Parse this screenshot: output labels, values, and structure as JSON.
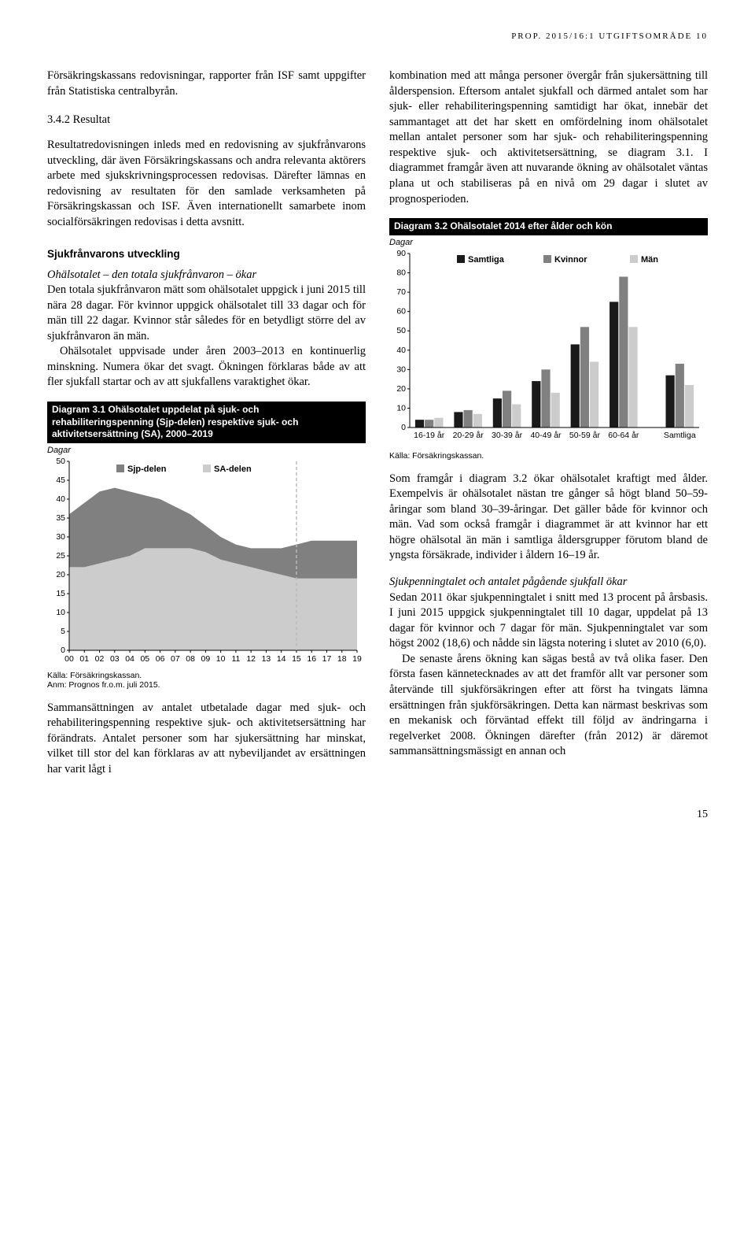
{
  "header": "PROP. 2015/16:1 UTGIFTSOMRÅDE 10",
  "page_number": "15",
  "left": {
    "p1": "Försäkringskassans redovisningar, rapporter från ISF samt uppgifter från Statistiska centralbyrån.",
    "sec_num": "3.4.2   Resultat",
    "p2": "Resultatredovisningen inleds med en redovisning av sjukfrånvarons utveckling, där även Försäkringskassans och andra relevanta aktörers arbete med sjukskrivningsprocessen redovisas. Därefter lämnas en redovisning av resultaten för den samlade verksamheten på Försäkringskassan och ISF. Även internationellt samarbete inom socialförsäkringen redovisas i detta avsnitt.",
    "sub1": "Sjukfrånvarons utveckling",
    "p3_head": "Ohälsotalet – den totala sjukfrånvaron – ökar",
    "p3": "Den totala sjukfrånvaron mätt som ohälsotalet uppgick i juni 2015 till nära 28 dagar. För kvinnor uppgick ohälsotalet till 33 dagar och för män till 22 dagar. Kvinnor står således för en betydligt större del av sjukfrånvaron än män.",
    "p4": "Ohälsotalet uppvisade under åren 2003–2013 en kontinuerlig minskning. Numera ökar det svagt. Ökningen förklaras både av att fler sjukfall startar och av att sjukfallens varaktighet ökar.",
    "p5": "Sammansättningen av antalet utbetalade dagar med sjuk- och rehabiliteringspenning respektive sjuk- och aktivitetsersättning har förändrats. Antalet personer som har sjukersättning har minskat, vilket till stor del kan förklaras av att nybeviljandet av ersättningen har varit lågt i"
  },
  "right": {
    "p1": "kombination med att många personer övergår från sjukersättning till ålderspension. Eftersom antalet sjukfall och därmed antalet som har sjuk- eller rehabiliteringspenning samtidigt har ökat, innebär det sammantaget att det har skett en omfördelning inom ohälsotalet mellan antalet personer som har sjuk- och rehabiliteringspenning respektive sjuk- och aktivitetsersättning, se diagram 3.1. I diagrammet framgår även att nuvarande ökning av ohälsotalet väntas plana ut och stabiliseras på en nivå om 29 dagar i slutet av prognosperioden.",
    "p2": "Som framgår i diagram 3.2 ökar ohälsotalet kraftigt med ålder. Exempelvis är ohälsotalet nästan tre gånger så högt bland 50–59-åringar som bland 30–39-åringar. Det gäller både för kvinnor och män. Vad som också framgår i diagrammet är att kvinnor har ett högre ohälsotal än män i samtliga åldersgrupper förutom bland de yngsta försäkrade, individer i åldern 16–19 år.",
    "p3_head": "Sjukpenningtalet och antalet pågående sjukfall ökar",
    "p3": "Sedan 2011 ökar sjukpenningtalet i snitt med 13 procent på årsbasis. I juni 2015 uppgick sjukpenningtalet till 10 dagar, uppdelat på 13 dagar för kvinnor och 7 dagar för män. Sjukpenningtalet var som högst 2002 (18,6) och nådde sin lägsta notering i slutet av 2010 (6,0).",
    "p4": "De senaste årens ökning kan sägas bestå av två olika faser. Den första fasen kännetecknades av att det framför allt var personer som återvände till sjukförsäkringen efter att först ha tvingats lämna ersättningen från sjukförsäkringen. Detta kan närmast beskrivas som en mekanisk och förväntad effekt till följd av ändringarna i regelverket 2008. Ökningen därefter (från 2012) är däremot sammansättningsmässigt en annan och"
  },
  "chart1": {
    "title": "Diagram 3.1 Ohälsotalet uppdelat på sjuk- och rehabiliteringspenning (Sjp-delen) respektive sjuk- och aktivitetsersättning (SA), 2000–2019",
    "unit": "Dagar",
    "source": "Källa: Försäkringskassan.",
    "note": "Anm: Prognos fr.o.m. juli 2015.",
    "legend_sjp": "Sjp-delen",
    "legend_sa": "SA-delen",
    "color_sjp": "#808080",
    "color_sa": "#cccccc",
    "color_divider": "#bbbbbb",
    "ylim": [
      0,
      50
    ],
    "ytick_step": 5,
    "x_labels": [
      "00",
      "01",
      "02",
      "03",
      "04",
      "05",
      "06",
      "07",
      "08",
      "09",
      "10",
      "11",
      "12",
      "13",
      "14",
      "15",
      "16",
      "17",
      "18",
      "19"
    ],
    "sa_values": [
      22,
      22,
      23,
      24,
      25,
      27,
      27,
      27,
      27,
      26,
      24,
      23,
      22,
      21,
      20,
      19,
      19,
      19,
      19,
      19
    ],
    "total_values": [
      36,
      39,
      42,
      43,
      42,
      41,
      40,
      38,
      36,
      33,
      30,
      28,
      27,
      27,
      27,
      28,
      29,
      29,
      29,
      29
    ],
    "prognosis_index": 15
  },
  "chart2": {
    "title": "Diagram 3.2 Ohälsotalet 2014 efter ålder och kön",
    "unit": "Dagar",
    "source": "Källa: Försäkringskassan.",
    "legend": [
      "Samtliga",
      "Kvinnor",
      "Män"
    ],
    "colors": [
      "#1a1a1a",
      "#808080",
      "#cccccc"
    ],
    "categories": [
      "16-19 år",
      "20-29 år",
      "30-39 år",
      "40-49 år",
      "50-59 år",
      "60-64 år",
      "Samtliga"
    ],
    "values": [
      [
        4,
        4,
        5
      ],
      [
        8,
        9,
        7
      ],
      [
        15,
        19,
        12
      ],
      [
        24,
        30,
        18
      ],
      [
        43,
        52,
        34
      ],
      [
        65,
        78,
        52
      ],
      [
        27,
        33,
        22
      ]
    ],
    "ylim": [
      0,
      90
    ],
    "ytick_step": 10,
    "gap_after": 6
  }
}
